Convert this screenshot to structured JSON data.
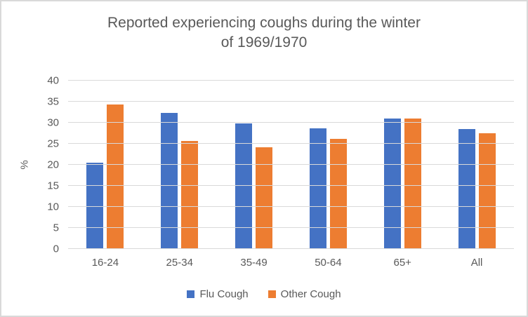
{
  "chart_data": {
    "type": "bar",
    "title": "Reported experiencing coughs during the winter of 1969/1970",
    "title_lines": [
      "Reported experiencing coughs during the winter",
      "of 1969/1970"
    ],
    "categories": [
      "16-24",
      "25-34",
      "35-49",
      "50-64",
      "65+",
      "All"
    ],
    "series": [
      {
        "name": "Flu Cough",
        "color": "#4472C4",
        "values": [
          20.5,
          32.3,
          29.9,
          28.6,
          31.0,
          28.5
        ]
      },
      {
        "name": "Other Cough",
        "color": "#ED7D31",
        "values": [
          34.4,
          25.6,
          24.2,
          26.2,
          31.0,
          27.5
        ]
      }
    ],
    "xlabel": "",
    "ylabel": "%",
    "ylim": [
      0,
      40
    ],
    "ytick_step": 5,
    "yticks": [
      0,
      5,
      10,
      15,
      20,
      25,
      30,
      35,
      40
    ],
    "grid": true,
    "legend_position": "bottom"
  },
  "theme": {
    "text_color": "#595959",
    "grid_color": "#D9D9D9",
    "border_color": "#D9D9D9",
    "background": "#FFFFFF"
  }
}
